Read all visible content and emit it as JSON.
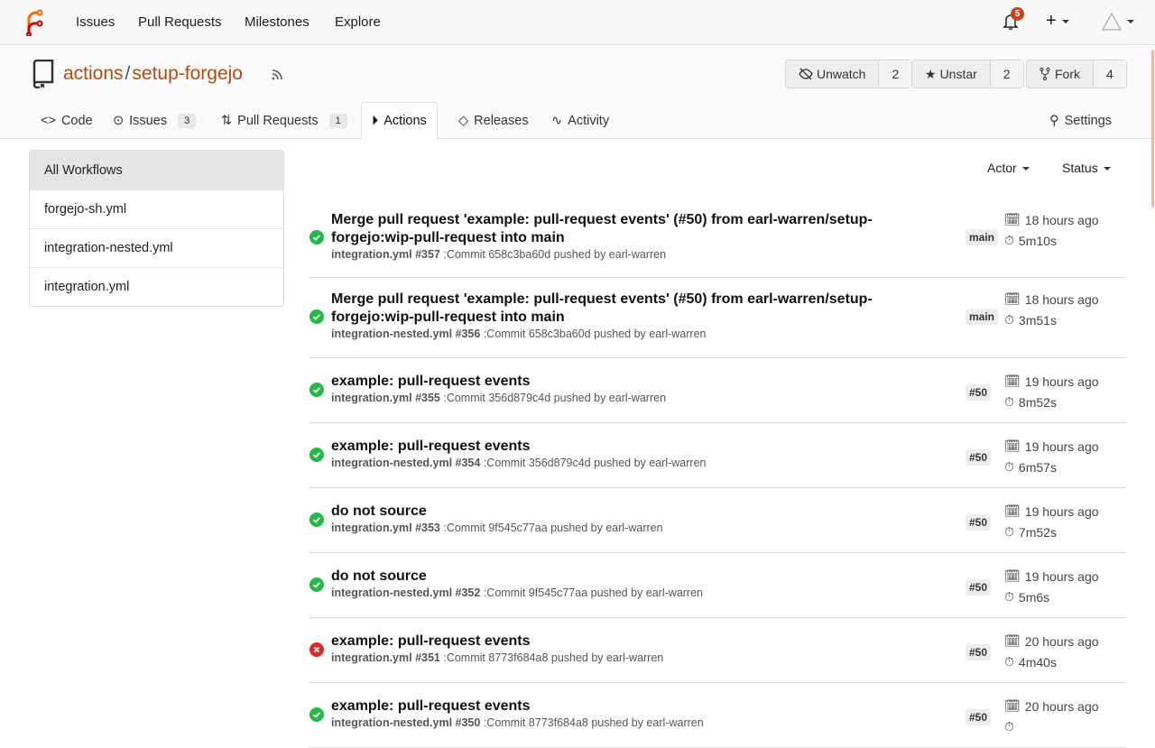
{
  "nav": {
    "items": [
      "Issues",
      "Pull Requests",
      "Milestones",
      "Explore"
    ],
    "notifications": "5"
  },
  "repo": {
    "owner": "actions",
    "name": "setup-forgejo",
    "unwatch": "Unwatch",
    "watch_count": "2",
    "unstar": "Unstar",
    "star_count": "2",
    "fork": "Fork",
    "fork_count": "4"
  },
  "tabs": [
    {
      "label": "Code"
    },
    {
      "label": "Issues",
      "count": "3"
    },
    {
      "label": "Pull Requests",
      "count": "1"
    },
    {
      "label": "Actions"
    },
    {
      "label": "Releases"
    },
    {
      "label": "Activity"
    },
    {
      "label": "Settings"
    }
  ],
  "workflows": [
    "All Workflows",
    "forgejo-sh.yml",
    "integration-nested.yml",
    "integration.yml"
  ],
  "filters": {
    "actor": "Actor",
    "status": "Status"
  },
  "colors": {
    "success": "#21ba45",
    "failure": "#db2828",
    "accent": "#b8490f"
  },
  "runs": [
    {
      "title": "Merge pull request 'example: pull-request events' (#50) from earl-warren/setup-forgejo:wip-pull-request into main",
      "workflow": "integration.yml #357",
      "detail": ":Commit 658c3ba60d pushed by earl-warren",
      "ref": "main",
      "time": "18 hours ago",
      "duration": "5m10s",
      "status": "success"
    },
    {
      "title": "Merge pull request 'example: pull-request events' (#50) from earl-warren/setup-forgejo:wip-pull-request into main",
      "workflow": "integration-nested.yml #356",
      "detail": ":Commit 658c3ba60d pushed by earl-warren",
      "ref": "main",
      "time": "18 hours ago",
      "duration": "3m51s",
      "status": "success"
    },
    {
      "title": "example: pull-request events",
      "workflow": "integration.yml #355",
      "detail": ":Commit 356d879c4d pushed by earl-warren",
      "ref": "#50",
      "time": "19 hours ago",
      "duration": "8m52s",
      "status": "success"
    },
    {
      "title": "example: pull-request events",
      "workflow": "integration-nested.yml #354",
      "detail": ":Commit 356d879c4d pushed by earl-warren",
      "ref": "#50",
      "time": "19 hours ago",
      "duration": "6m57s",
      "status": "success"
    },
    {
      "title": "do not source",
      "workflow": "integration.yml #353",
      "detail": ":Commit 9f545c77aa pushed by earl-warren",
      "ref": "#50",
      "time": "19 hours ago",
      "duration": "7m52s",
      "status": "success"
    },
    {
      "title": "do not source",
      "workflow": "integration-nested.yml #352",
      "detail": ":Commit 9f545c77aa pushed by earl-warren",
      "ref": "#50",
      "time": "19 hours ago",
      "duration": "5m6s",
      "status": "success"
    },
    {
      "title": "example: pull-request events",
      "workflow": "integration.yml #351",
      "detail": ":Commit 8773f684a8 pushed by earl-warren",
      "ref": "#50",
      "time": "20 hours ago",
      "duration": "4m40s",
      "status": "failure"
    },
    {
      "title": "example: pull-request events",
      "workflow": "integration-nested.yml #350",
      "detail": ":Commit 8773f684a8 pushed by earl-warren",
      "ref": "#50",
      "time": "20 hours ago",
      "duration": "",
      "status": "success"
    }
  ]
}
